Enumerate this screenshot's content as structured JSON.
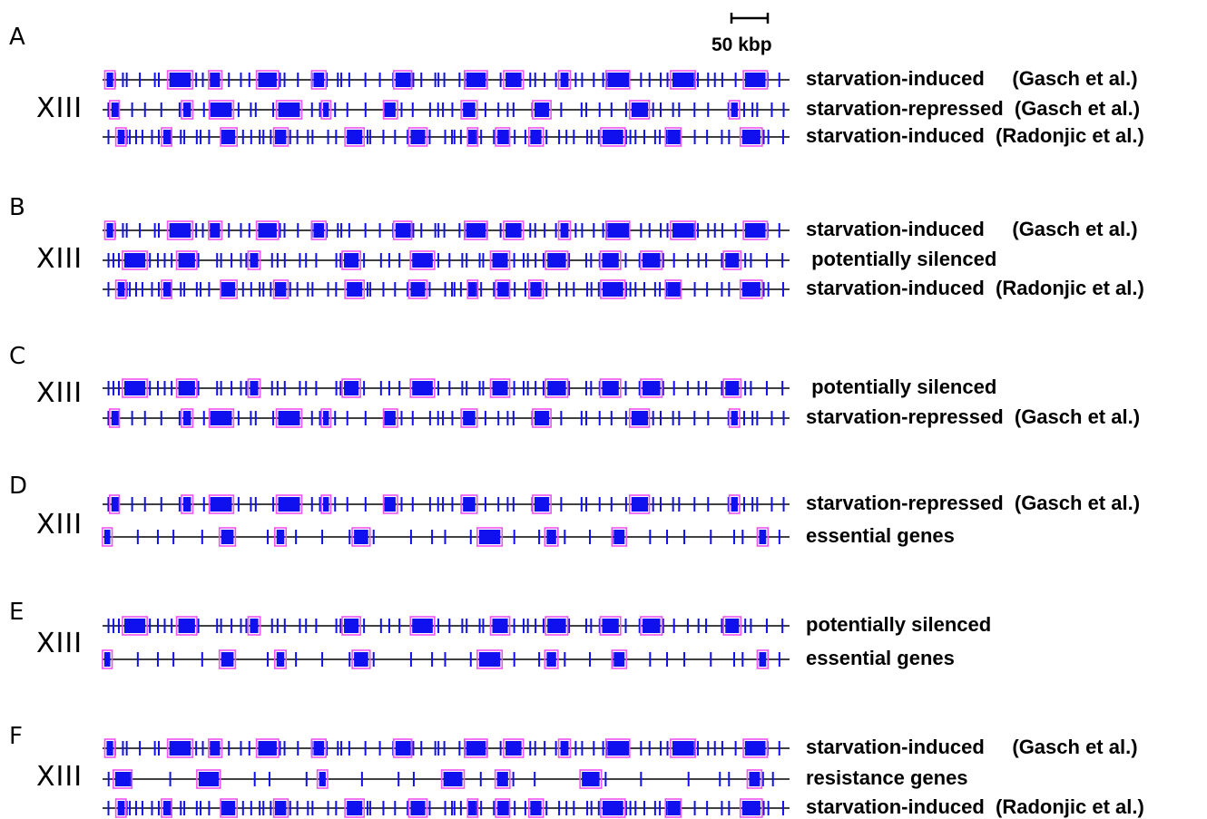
{
  "scale_bar": {
    "label": "50 kbp"
  },
  "colors": {
    "gene": "#1010ee",
    "cluster_box": "#ee55ee",
    "axis": "#000000"
  },
  "panels": [
    {
      "letter": "A",
      "chromosome": "XIII",
      "tracks": [
        {
          "label": "starvation-induced     (Gasch et al.)",
          "seed": 11,
          "density": 1.0
        },
        {
          "label": "starvation-repressed  (Gasch et al.)",
          "seed": 23,
          "density": 0.8
        },
        {
          "label": "starvation-induced  (Radonjic et al.)",
          "seed": 37,
          "density": 1.1
        }
      ]
    },
    {
      "letter": "B",
      "chromosome": "XIII",
      "tracks": [
        {
          "label": "starvation-induced     (Gasch et al.)",
          "seed": 11,
          "density": 1.0
        },
        {
          "label": " potentially silenced",
          "seed": 53,
          "density": 0.8
        },
        {
          "label": "starvation-induced  (Radonjic et al.)",
          "seed": 37,
          "density": 1.1
        }
      ]
    },
    {
      "letter": "C",
      "chromosome": "XIII",
      "tracks": [
        {
          "label": " potentially silenced",
          "seed": 53,
          "density": 0.8
        },
        {
          "label": "starvation-repressed  (Gasch et al.)",
          "seed": 23,
          "density": 0.8
        }
      ]
    },
    {
      "letter": "D",
      "chromosome": "XIII",
      "tracks": [
        {
          "label": "starvation-repressed  (Gasch et al.)",
          "seed": 23,
          "density": 0.8
        },
        {
          "label": "essential genes",
          "seed": 71,
          "density": 0.45
        }
      ]
    },
    {
      "letter": "E",
      "chromosome": "XIII",
      "tracks": [
        {
          "label": "potentially silenced",
          "seed": 53,
          "density": 0.8
        },
        {
          "label": "essential genes",
          "seed": 71,
          "density": 0.45
        }
      ]
    },
    {
      "letter": "F",
      "chromosome": "XIII",
      "tracks": [
        {
          "label": "starvation-induced     (Gasch et al.)",
          "seed": 11,
          "density": 1.0
        },
        {
          "label": "resistance genes",
          "seed": 89,
          "density": 0.35
        },
        {
          "label": "starvation-induced  (Radonjic et al.)",
          "seed": 37,
          "density": 1.1
        }
      ]
    }
  ]
}
